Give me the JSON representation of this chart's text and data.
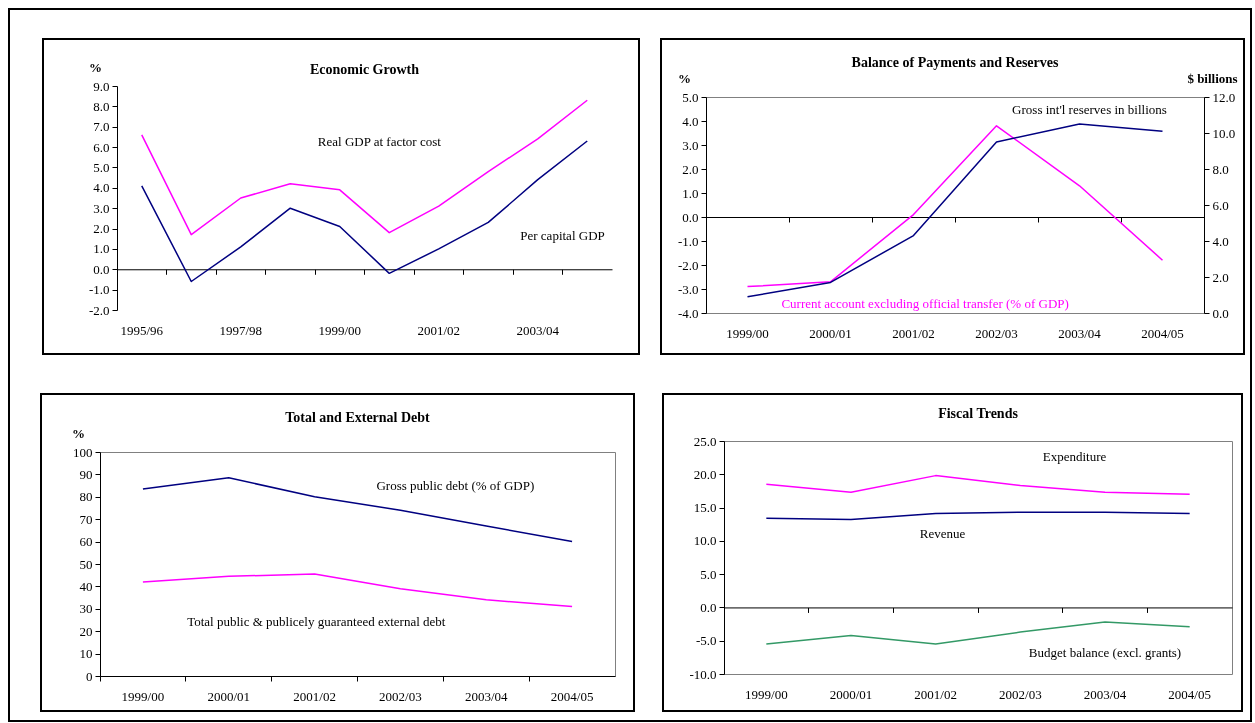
{
  "chart_data": [
    {
      "type": "line",
      "title": "Economic Growth",
      "ylabel": "%",
      "categories": [
        "1995/96",
        null,
        "1997/98",
        null,
        "1999/00",
        null,
        "2001/02",
        null,
        "2003/04",
        null
      ],
      "series": [
        {
          "name": "Real GDP at factor cost",
          "color": "#ff00ff",
          "values": [
            6.6,
            1.7,
            3.5,
            4.2,
            3.9,
            1.8,
            3.1,
            4.8,
            6.4,
            8.3
          ]
        },
        {
          "name": "Per capital GDP",
          "color": "#000080",
          "values": [
            4.1,
            -0.6,
            1.1,
            3.0,
            2.1,
            -0.2,
            1.0,
            2.3,
            4.4,
            6.3
          ]
        }
      ],
      "ylim": [
        -2,
        9
      ],
      "yticks": [
        {
          "value": -2,
          "label": "-2.0"
        },
        {
          "value": -1,
          "label": "-1.0"
        },
        {
          "value": 0,
          "label": "0.0"
        },
        {
          "value": 1,
          "label": "1.0"
        },
        {
          "value": 2,
          "label": "2.0"
        },
        {
          "value": 3,
          "label": "3.0"
        },
        {
          "value": 4,
          "label": "4.0"
        },
        {
          "value": 5,
          "label": "5.0"
        },
        {
          "value": 6,
          "label": "6.0"
        },
        {
          "value": 7,
          "label": "7.0"
        },
        {
          "value": 8,
          "label": "8.0"
        },
        {
          "value": 9,
          "label": "9.0"
        }
      ]
    },
    {
      "type": "line",
      "title": "Balance of Payments and Reserves",
      "ylabel": "%",
      "y2label": "$ billions",
      "categories": [
        "1999/00",
        "2000/01",
        "2001/02",
        "2002/03",
        "2003/04",
        "2004/05"
      ],
      "series": [
        {
          "name": "Current account excluding official transfer (% of GDP)",
          "color": "#ff00ff",
          "values": [
            -2.9,
            -2.7,
            0.1,
            3.8,
            1.3,
            -1.8
          ]
        },
        {
          "name": "Gross int'l reserves in billions",
          "color": "#000080",
          "axis": "y2",
          "values": [
            0.9,
            1.7,
            4.3,
            9.5,
            10.5,
            10.1
          ]
        }
      ],
      "ylim": [
        -4,
        5
      ],
      "yticks": [
        {
          "value": -4,
          "label": "-4.0"
        },
        {
          "value": -3,
          "label": "-3.0"
        },
        {
          "value": -2,
          "label": "-2.0"
        },
        {
          "value": -1,
          "label": "-1.0"
        },
        {
          "value": 0,
          "label": "0.0"
        },
        {
          "value": 1,
          "label": "1.0"
        },
        {
          "value": 2,
          "label": "2.0"
        },
        {
          "value": 3,
          "label": "3.0"
        },
        {
          "value": 4,
          "label": "4.0"
        },
        {
          "value": 5,
          "label": "5.0"
        }
      ],
      "y2lim": [
        0,
        12
      ],
      "y2ticks": [
        {
          "value": 0,
          "label": "0.0"
        },
        {
          "value": 2,
          "label": "2.0"
        },
        {
          "value": 4,
          "label": "4.0"
        },
        {
          "value": 6,
          "label": "6.0"
        },
        {
          "value": 8,
          "label": "8.0"
        },
        {
          "value": 10,
          "label": "10.0"
        },
        {
          "value": 12,
          "label": "12.0"
        }
      ]
    },
    {
      "type": "line",
      "title": "Total and External Debt",
      "ylabel": "%",
      "categories": [
        "1999/00",
        "2000/01",
        "2001/02",
        "2002/03",
        "2003/04",
        "2004/05"
      ],
      "series": [
        {
          "name": "Gross public debt (% of GDP)",
          "color": "#000080",
          "values": [
            83.5,
            88.5,
            80,
            74,
            67,
            60
          ]
        },
        {
          "name": "Total public & publicely guaranteed external debt",
          "color": "#ff00ff",
          "values": [
            42,
            44.5,
            45.5,
            39,
            34,
            31
          ]
        }
      ],
      "ylim": [
        0,
        100
      ],
      "yticks": [
        0,
        10,
        20,
        30,
        40,
        50,
        60,
        70,
        80,
        90,
        100
      ]
    },
    {
      "type": "line",
      "title": "Fiscal Trends",
      "categories": [
        "1999/00",
        "2000/01",
        "2001/02",
        "2002/03",
        "2003/04",
        "2004/05"
      ],
      "series": [
        {
          "name": "Expenditure",
          "color": "#ff00ff",
          "values": [
            18.5,
            17.3,
            19.8,
            18.3,
            17.3,
            17.0
          ]
        },
        {
          "name": "Revenue",
          "color": "#000080",
          "values": [
            13.4,
            13.2,
            14.1,
            14.3,
            14.3,
            14.1
          ]
        },
        {
          "name": "Budget balance (excl. grants)",
          "color": "#339966",
          "values": [
            -5.5,
            -4.2,
            -5.5,
            -3.7,
            -2.2,
            -2.9
          ]
        }
      ],
      "ylim": [
        -10,
        25
      ],
      "yticks": [
        {
          "value": -10,
          "label": "-10.0"
        },
        {
          "value": -5,
          "label": "-5.0"
        },
        {
          "value": 0,
          "label": "0.0"
        },
        {
          "value": 5,
          "label": "5.0"
        },
        {
          "value": 10,
          "label": "10.0"
        },
        {
          "value": 15,
          "label": "15.0"
        },
        {
          "value": 20,
          "label": "20.0"
        },
        {
          "value": 25,
          "label": "25.0"
        }
      ]
    }
  ]
}
